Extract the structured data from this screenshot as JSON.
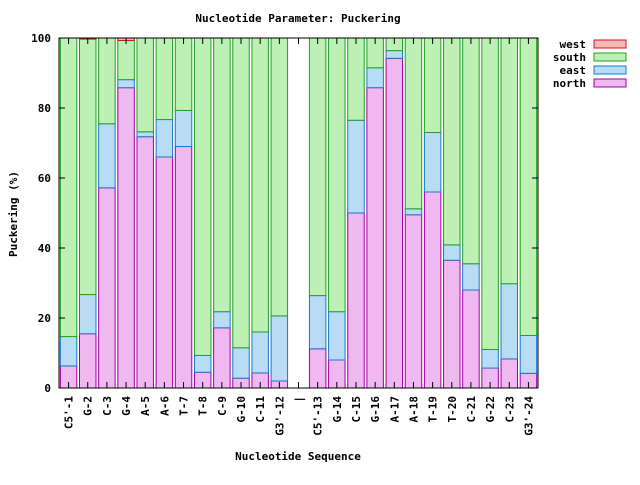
{
  "chart_data": {
    "type": "bar",
    "stacked": true,
    "title": "Nucleotide Parameter: Puckering",
    "xlabel": "Nucleotide Sequence",
    "ylabel": "Puckering (%)",
    "ylim": [
      0,
      100
    ],
    "yticks": [
      0,
      20,
      40,
      60,
      80,
      100
    ],
    "grid": false,
    "legend_position": "top-right",
    "categories": [
      "C5'-1",
      "G-2",
      "C-3",
      "G-4",
      "A-5",
      "A-6",
      "T-7",
      "T-8",
      "C-9",
      "G-10",
      "C-11",
      "G3'-12",
      "|",
      "C5'-13",
      "G-14",
      "C-15",
      "G-16",
      "A-17",
      "A-18",
      "T-19",
      "T-20",
      "C-21",
      "G-22",
      "C-23",
      "G3'-24"
    ],
    "series": [
      {
        "name": "north",
        "color": "#f0b8f0",
        "edge": "#a000a0",
        "values": [
          6.3,
          15.5,
          57.2,
          85.8,
          71.8,
          66.0,
          69.0,
          4.5,
          17.2,
          2.8,
          4.3,
          2.0,
          0,
          11.2,
          8.0,
          50.0,
          85.8,
          94.2,
          49.5,
          56.0,
          36.5,
          28.0,
          5.7,
          8.3,
          4.2
        ]
      },
      {
        "name": "east",
        "color": "#b8dcf4",
        "edge": "#1a78c8",
        "values": [
          8.4,
          11.2,
          18.3,
          2.3,
          1.4,
          10.7,
          10.3,
          4.8,
          4.6,
          8.7,
          11.7,
          18.6,
          0,
          15.2,
          13.8,
          26.5,
          5.7,
          2.2,
          1.7,
          17.0,
          4.4,
          7.5,
          5.3,
          21.5,
          10.8
        ]
      },
      {
        "name": "south",
        "color": "#bdf0b4",
        "edge": "#20a020",
        "values": [
          85.3,
          73.0,
          24.5,
          11.2,
          26.8,
          23.3,
          20.7,
          90.7,
          78.2,
          88.5,
          84.0,
          79.4,
          0,
          73.6,
          78.2,
          23.5,
          8.5,
          3.6,
          48.8,
          27.0,
          59.1,
          64.5,
          89.0,
          70.2,
          85.0
        ]
      },
      {
        "name": "west",
        "color": "#f8b8b8",
        "edge": "#c81818",
        "values": [
          0,
          0.3,
          0,
          0.7,
          0,
          0,
          0,
          0,
          0,
          0,
          0,
          0,
          0,
          0,
          0,
          0,
          0,
          0,
          0,
          0,
          0,
          0,
          0,
          0,
          0
        ]
      }
    ]
  }
}
